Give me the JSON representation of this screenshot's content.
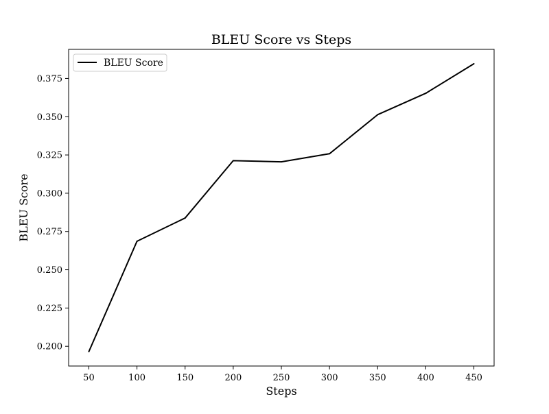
{
  "chart_data": {
    "type": "line",
    "title": "BLEU Score vs Steps",
    "xlabel": "Steps",
    "ylabel": "BLEU Score",
    "x": [
      50,
      100,
      150,
      200,
      250,
      300,
      350,
      400,
      450
    ],
    "series": [
      {
        "name": "BLEU Score",
        "values": [
          0.1965,
          0.2686,
          0.2838,
          0.3213,
          0.3205,
          0.3258,
          0.3513,
          0.3653,
          0.3846
        ],
        "color": "#000000"
      }
    ],
    "xticks": [
      50,
      100,
      150,
      200,
      250,
      300,
      350,
      400,
      450
    ],
    "yticks": [
      0.2,
      0.225,
      0.25,
      0.275,
      0.3,
      0.325,
      0.35,
      0.375
    ],
    "ytick_labels": [
      "0.200",
      "0.225",
      "0.250",
      "0.275",
      "0.300",
      "0.325",
      "0.350",
      "0.375"
    ],
    "xlim": [
      29,
      471
    ],
    "ylim": [
      0.1871,
      0.394
    ],
    "grid": false,
    "legend_position": "upper left"
  }
}
